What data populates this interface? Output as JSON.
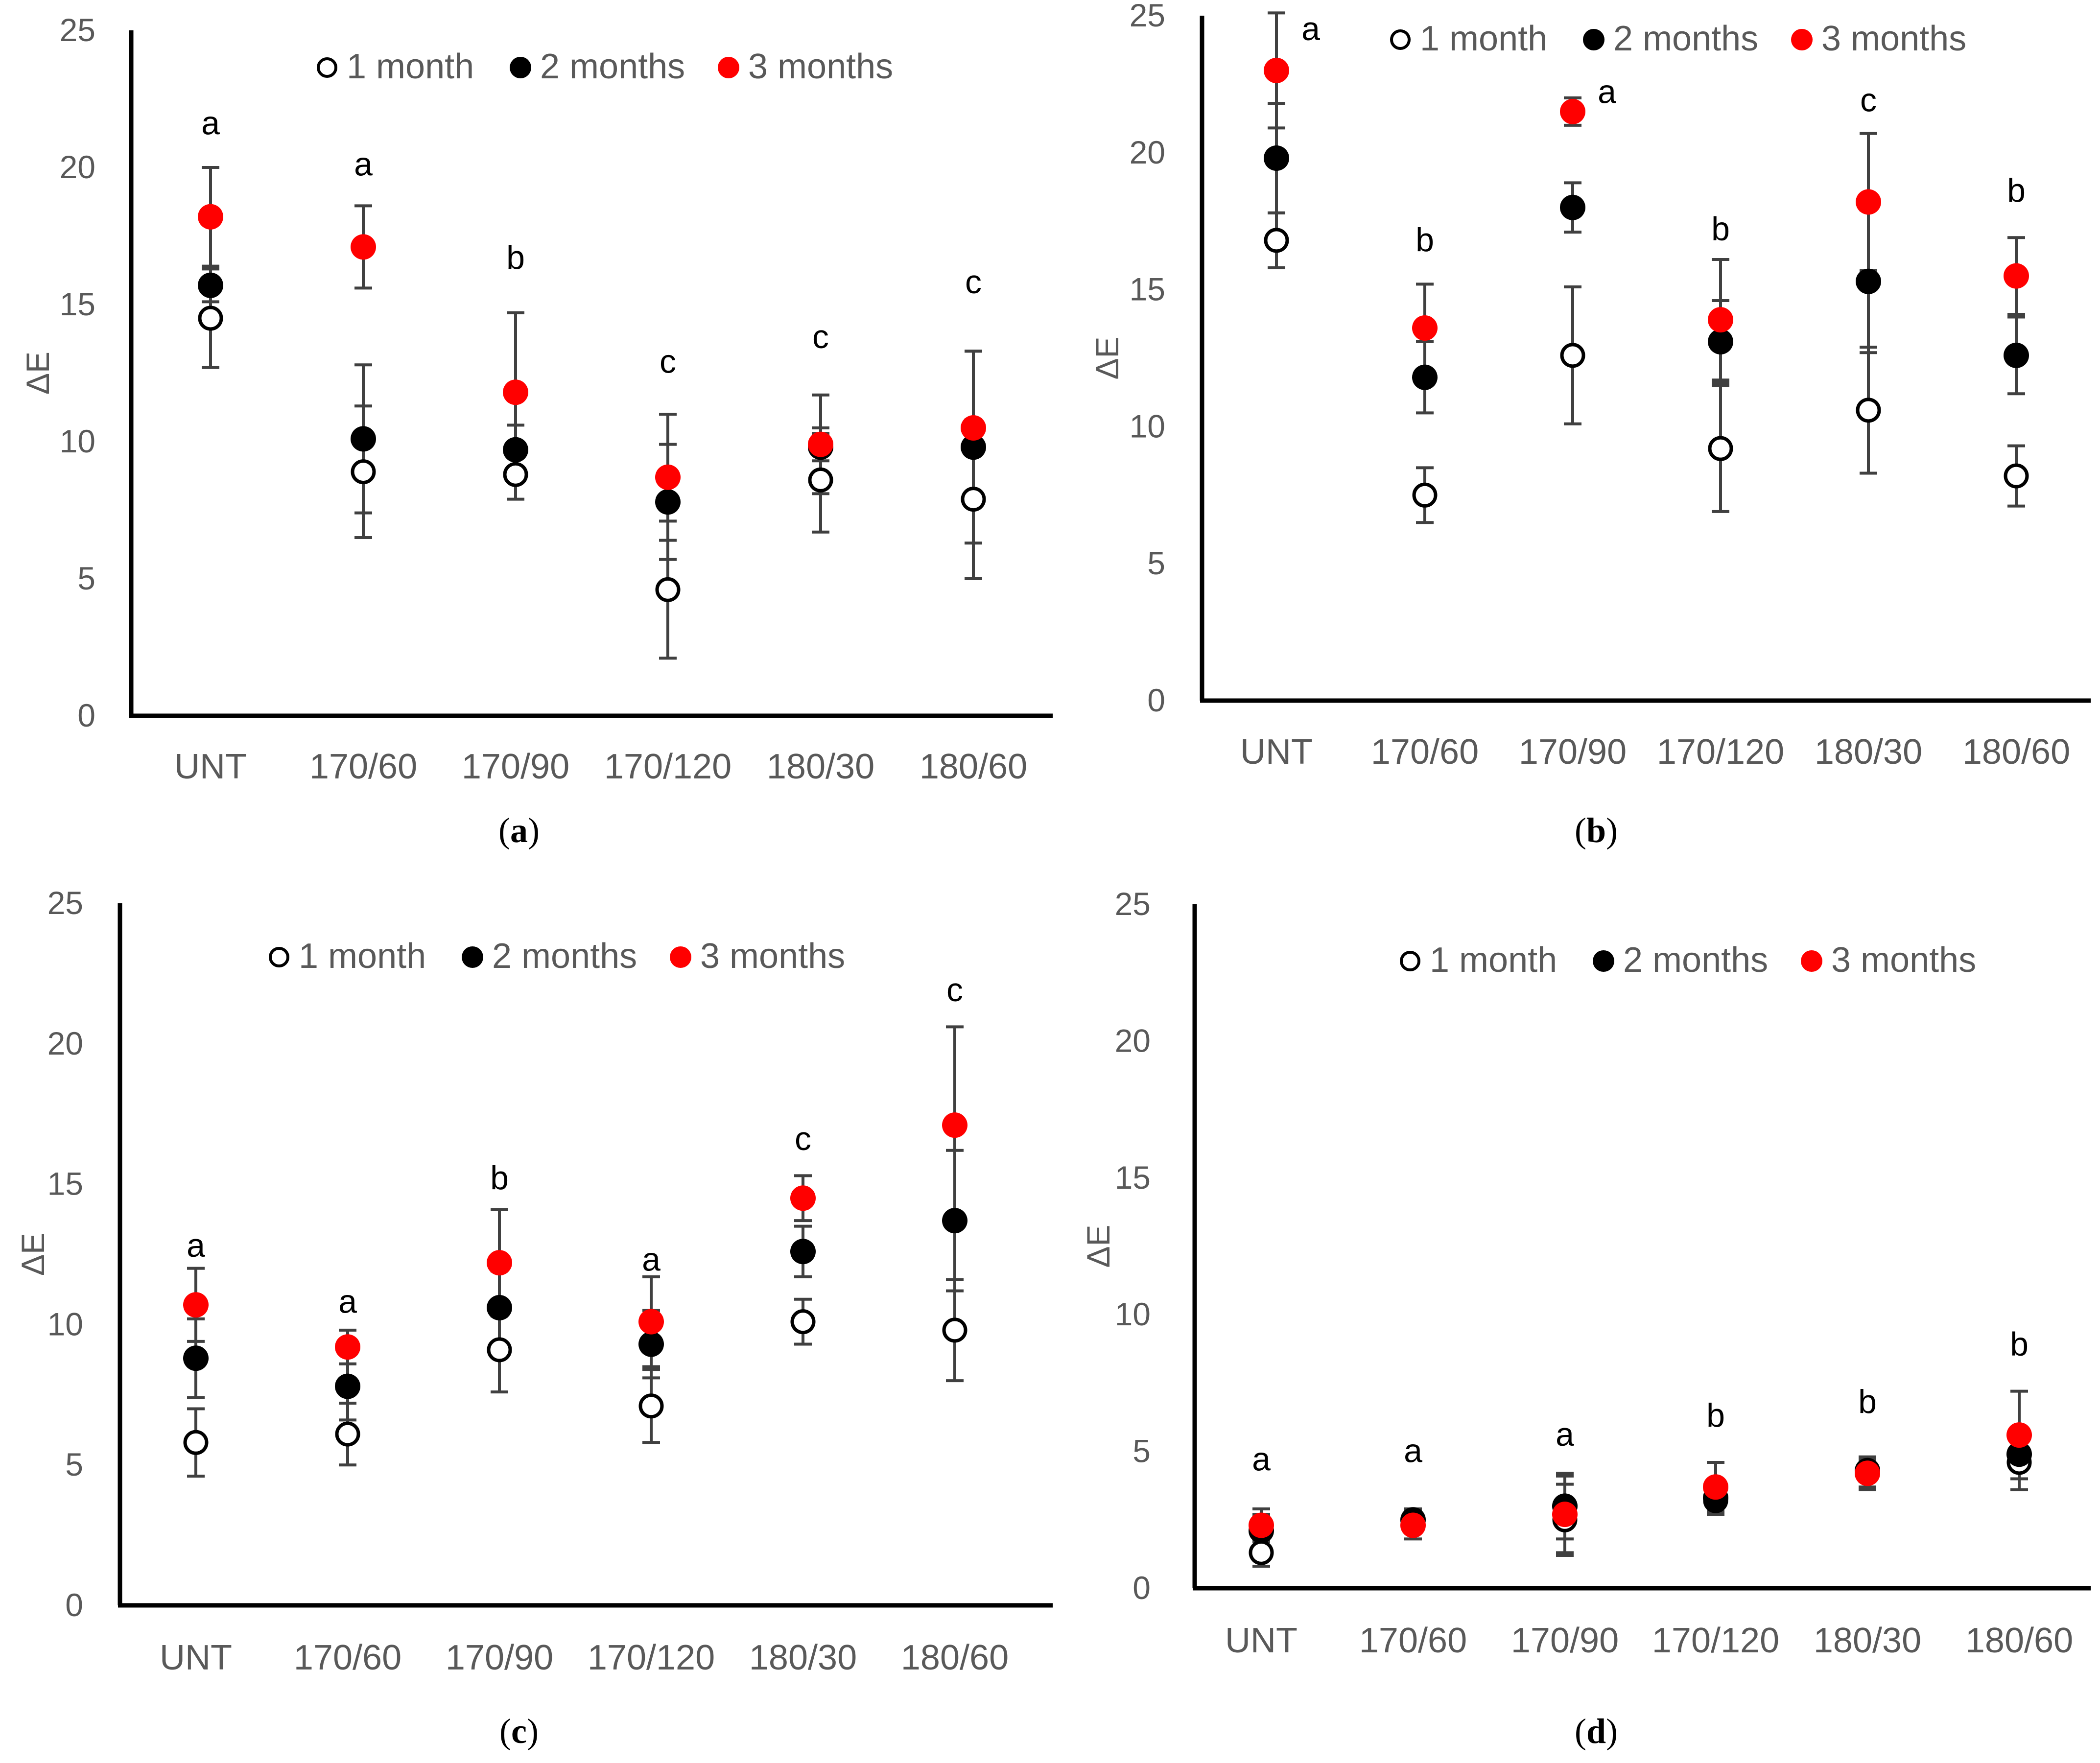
{
  "colors": {
    "axis": "#000000",
    "text": "#595959",
    "error_bar": "#404040",
    "month1": "#ffffff",
    "month2": "#000000",
    "month3": "#ff0000"
  },
  "chart_data": [
    {
      "panel": "a",
      "type": "scatter",
      "caption": {
        "open": "(",
        "letter": "a",
        "close": ")"
      },
      "ylabel": "ΔE",
      "ylim": [
        0,
        25
      ],
      "yticks": [
        "0",
        "5",
        "10",
        "15",
        "20",
        "25"
      ],
      "categories": [
        "UNT",
        "170/60",
        "170/90",
        "170/120",
        "180/30",
        "180/60"
      ],
      "legend": [
        "1 month",
        "2 months",
        "3 months"
      ],
      "series": [
        {
          "name": "1 month",
          "values": [
            14.5,
            8.9,
            8.8,
            4.6,
            8.6,
            7.9
          ],
          "errors": [
            1.8,
            2.4,
            0.9,
            2.5,
            1.9,
            2.9
          ]
        },
        {
          "name": "2 months",
          "values": [
            15.7,
            10.1,
            9.7,
            7.8,
            9.8,
            9.8
          ],
          "errors": [
            0.6,
            2.7,
            0.9,
            2.1,
            0.5,
            3.5
          ]
        },
        {
          "name": "3 months",
          "values": [
            18.2,
            17.1,
            11.8,
            8.7,
            9.9,
            10.5
          ],
          "errors": [
            1.8,
            1.5,
            2.9,
            2.3,
            1.8,
            2.8
          ]
        }
      ],
      "letters": [
        "a",
        "a",
        "b",
        "c",
        "c",
        "c"
      ],
      "letter_values": [
        21.6,
        20.1,
        16.7,
        12.9,
        13.8,
        15.8
      ]
    },
    {
      "panel": "b",
      "type": "scatter",
      "caption": {
        "open": "(",
        "letter": "b",
        "close": ")"
      },
      "ylabel": "ΔE",
      "ylim": [
        0,
        25
      ],
      "yticks": [
        "0",
        "5",
        "10",
        "15",
        "20",
        "25"
      ],
      "categories": [
        "UNT",
        "170/60",
        "170/90",
        "170/120",
        "180/30",
        "180/60"
      ],
      "legend": [
        "1 month",
        "2 months",
        "3 months"
      ],
      "series": [
        {
          "name": "1 month",
          "values": [
            16.8,
            7.5,
            12.6,
            9.2,
            10.6,
            8.2
          ],
          "errors": [
            1.0,
            1.0,
            2.5,
            2.3,
            2.3,
            1.1
          ]
        },
        {
          "name": "2 months",
          "values": [
            19.8,
            11.8,
            18.0,
            13.1,
            15.3,
            12.6
          ],
          "errors": [
            2.0,
            1.3,
            0.9,
            1.5,
            2.6,
            1.4
          ]
        },
        {
          "name": "3 months",
          "values": [
            23.0,
            13.6,
            21.5,
            13.9,
            18.2,
            15.5
          ],
          "errors": [
            2.1,
            1.6,
            0.5,
            2.2,
            2.5,
            1.4
          ]
        }
      ],
      "letters": [
        "a",
        "b",
        "a",
        "b",
        "c",
        "b"
      ],
      "letter_values": [
        24.5,
        16.8,
        22.2,
        17.2,
        21.9,
        18.6
      ]
    },
    {
      "panel": "c",
      "type": "scatter",
      "caption": {
        "open": "(",
        "letter": "c",
        "close": ")"
      },
      "ylabel": "ΔE",
      "ylim": [
        0,
        25
      ],
      "yticks": [
        "0",
        "5",
        "10",
        "15",
        "20",
        "25"
      ],
      "categories": [
        "UNT",
        "170/60",
        "170/90",
        "170/120",
        "180/30",
        "180/60"
      ],
      "legend": [
        "1 month",
        "2 months",
        "3 months"
      ],
      "series": [
        {
          "name": "1 month",
          "values": [
            5.8,
            6.1,
            9.1,
            7.1,
            10.1,
            9.8
          ],
          "errors": [
            1.2,
            1.1,
            1.5,
            1.3,
            0.8,
            1.8
          ]
        },
        {
          "name": "2 months",
          "values": [
            8.8,
            7.8,
            10.6,
            9.3,
            12.6,
            13.7
          ],
          "errors": [
            1.4,
            1.2,
            1.3,
            1.2,
            0.9,
            2.5
          ]
        },
        {
          "name": "3 months",
          "values": [
            10.7,
            9.2,
            12.2,
            10.1,
            14.5,
            17.1
          ],
          "errors": [
            1.3,
            0.6,
            1.9,
            1.6,
            0.8,
            3.5
          ]
        }
      ],
      "letters": [
        "a",
        "a",
        "b",
        "a",
        "c",
        "c"
      ],
      "letter_values": [
        12.8,
        10.8,
        15.2,
        12.3,
        16.6,
        21.9
      ]
    },
    {
      "panel": "d",
      "type": "scatter",
      "caption": {
        "open": "(",
        "letter": "d",
        "close": ")"
      },
      "ylabel": "ΔE",
      "ylim": [
        0,
        25
      ],
      "yticks": [
        "0",
        "5",
        "10",
        "15",
        "20",
        "25"
      ],
      "categories": [
        "UNT",
        "170/60",
        "170/90",
        "170/120",
        "180/30",
        "180/60"
      ],
      "legend": [
        "1 month",
        "2 months",
        "3 months"
      ],
      "series": [
        {
          "name": "1 month",
          "values": [
            1.3,
            2.5,
            2.5,
            3.2,
            4.2,
            4.6
          ],
          "errors": [
            0.5,
            0.4,
            1.3,
            0.5,
            0.5,
            1.0
          ]
        },
        {
          "name": "2 months",
          "values": [
            2.1,
            2.5,
            3.0,
            3.3,
            4.3,
            4.9
          ],
          "errors": [
            0.6,
            0.3,
            1.2,
            0.6,
            0.4,
            0.9
          ]
        },
        {
          "name": "3 months",
          "values": [
            2.3,
            2.3,
            2.7,
            3.7,
            4.2,
            5.6
          ],
          "errors": [
            0.6,
            0.5,
            1.4,
            0.9,
            0.6,
            1.6
          ]
        }
      ],
      "letters": [
        "a",
        "a",
        "a",
        "b",
        "b",
        "b"
      ],
      "letter_values": [
        4.7,
        5.0,
        5.6,
        6.3,
        6.8,
        8.9
      ]
    }
  ]
}
